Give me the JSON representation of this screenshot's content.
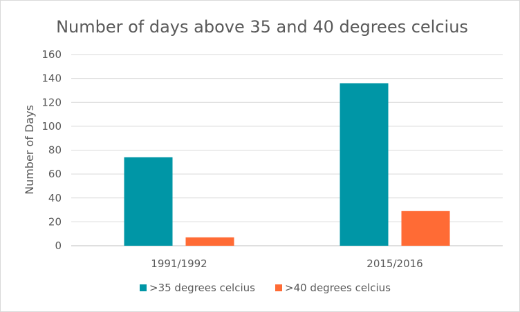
{
  "chart_data": {
    "type": "bar",
    "title": "Number of days above 35 and 40 degrees celcius",
    "xlabel": "",
    "ylabel": "Number of Days",
    "categories": [
      "1991/1992",
      "2015/2016"
    ],
    "series": [
      {
        "name": ">35 degrees celcius",
        "color": "#0096a6",
        "values": [
          74,
          136
        ]
      },
      {
        "name": ">40 degrees celcius",
        "color": "#ff6b35",
        "values": [
          7,
          29
        ]
      }
    ],
    "ylim": [
      0,
      160
    ],
    "yticks": [
      0,
      20,
      40,
      60,
      80,
      100,
      120,
      140,
      160
    ],
    "grid": true,
    "legend_position": "bottom"
  }
}
